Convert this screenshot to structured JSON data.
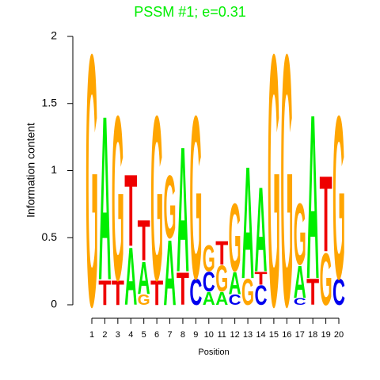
{
  "chart_data": {
    "type": "logo",
    "title": "PSSM #1; e=0.31",
    "title_color": "#00ee00",
    "x_label": "Position",
    "y_label": "Information content",
    "ylim": [
      0,
      2
    ],
    "yticks": [
      0,
      0.5,
      1,
      1.5,
      2
    ],
    "xlim": [
      1,
      20
    ],
    "xticks": [
      1,
      2,
      3,
      4,
      5,
      6,
      7,
      8,
      9,
      10,
      11,
      12,
      13,
      14,
      15,
      16,
      17,
      18,
      19,
      20
    ],
    "colors": {
      "A": "#00ee00",
      "C": "#0000ee",
      "G": "#ffa500",
      "T": "#ee0000"
    },
    "stacks": [
      [
        {
          "letter": "G",
          "value": 1.93
        }
      ],
      [
        {
          "letter": "T",
          "value": 0.19
        },
        {
          "letter": "A",
          "value": 1.26
        }
      ],
      [
        {
          "letter": "T",
          "value": 0.19
        },
        {
          "letter": "G",
          "value": 1.26
        }
      ],
      [
        {
          "letter": "A",
          "value": 0.44
        },
        {
          "letter": "T",
          "value": 0.55
        }
      ],
      [
        {
          "letter": "G",
          "value": 0.08
        },
        {
          "letter": "A",
          "value": 0.25
        },
        {
          "letter": "T",
          "value": 0.31
        }
      ],
      [
        {
          "letter": "T",
          "value": 0.19
        },
        {
          "letter": "G",
          "value": 1.26
        }
      ],
      [
        {
          "letter": "A",
          "value": 0.5
        },
        {
          "letter": "G",
          "value": 0.48
        }
      ],
      [
        {
          "letter": "T",
          "value": 0.25
        },
        {
          "letter": "A",
          "value": 0.96
        }
      ],
      [
        {
          "letter": "C",
          "value": 0.2
        },
        {
          "letter": "G",
          "value": 1.25
        }
      ],
      [
        {
          "letter": "A",
          "value": 0.1
        },
        {
          "letter": "C",
          "value": 0.15
        },
        {
          "letter": "G",
          "value": 0.2
        }
      ],
      [
        {
          "letter": "A",
          "value": 0.1
        },
        {
          "letter": "G",
          "value": 0.2
        },
        {
          "letter": "T",
          "value": 0.18
        }
      ],
      [
        {
          "letter": "C",
          "value": 0.08
        },
        {
          "letter": "A",
          "value": 0.17
        },
        {
          "letter": "G",
          "value": 0.52
        }
      ],
      [
        {
          "letter": "G",
          "value": 0.2
        },
        {
          "letter": "A",
          "value": 0.86
        }
      ],
      [
        {
          "letter": "C",
          "value": 0.15
        },
        {
          "letter": "T",
          "value": 0.1
        },
        {
          "letter": "A",
          "value": 0.65
        }
      ],
      [
        {
          "letter": "G",
          "value": 1.93
        }
      ],
      [
        {
          "letter": "G",
          "value": 1.93
        }
      ],
      [
        {
          "letter": "C",
          "value": 0.05
        },
        {
          "letter": "A",
          "value": 0.25
        },
        {
          "letter": "G",
          "value": 0.47
        }
      ],
      [
        {
          "letter": "T",
          "value": 0.2
        },
        {
          "letter": "A",
          "value": 1.26
        }
      ],
      [
        {
          "letter": "G",
          "value": 0.4
        },
        {
          "letter": "T",
          "value": 0.58
        }
      ],
      [
        {
          "letter": "C",
          "value": 0.2
        },
        {
          "letter": "G",
          "value": 1.25
        }
      ]
    ]
  }
}
